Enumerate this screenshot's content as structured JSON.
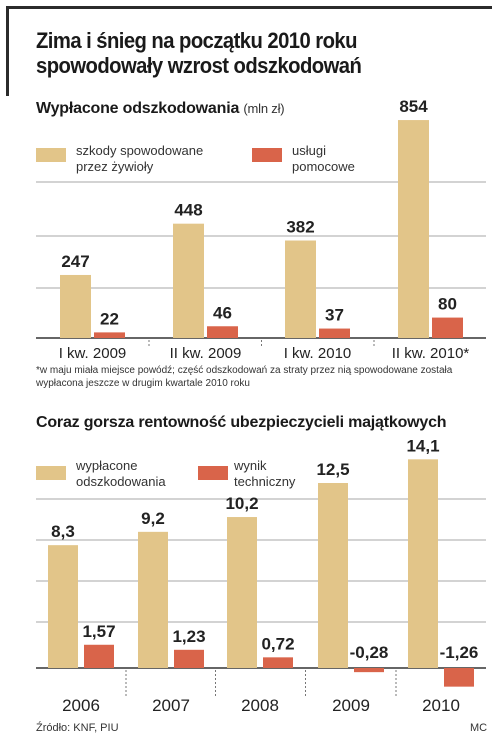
{
  "headline": "Zima i śnieg na początku 2010 roku spowodowały wzrost odszkodowań",
  "colors": {
    "series1": "#e2c589",
    "series2": "#d9644a",
    "grid": "#a7a7a7"
  },
  "chart_data": [
    {
      "type": "bar",
      "title": "Wypłacone odszkodowania",
      "unit": "(mln zł)",
      "categories": [
        "I kw. 2009",
        "II kw. 2009",
        "I kw. 2010",
        "II kw. 2010*"
      ],
      "series": [
        {
          "name": "szkody spowodowane\nprzez żywioły",
          "values": [
            247,
            448,
            382,
            854
          ],
          "labels": [
            "247",
            "448",
            "382",
            "854"
          ]
        },
        {
          "name": "usługi\npomocowe",
          "values": [
            22,
            46,
            37,
            80
          ],
          "labels": [
            "22",
            "46",
            "37",
            "80"
          ]
        }
      ],
      "ylim": [
        0,
        870
      ],
      "grid": true,
      "footnote": "*w maju miała miejsce powódź; część odszkodowań za straty przez nią spowodowane została wypłacona jeszcze w drugim kwartale 2010 roku"
    },
    {
      "type": "bar",
      "title": "Coraz gorsza rentowność ubezpieczycieli majątkowych",
      "categories": [
        "2006",
        "2007",
        "2008",
        "2009",
        "2010"
      ],
      "series": [
        {
          "name": "wypłacone\nodszkodowania",
          "values": [
            8.3,
            9.2,
            10.2,
            12.5,
            14.1
          ],
          "labels": [
            "8,3",
            "9,2",
            "10,2",
            "12,5",
            "14,1"
          ]
        },
        {
          "name": "wynik\ntechniczny",
          "values": [
            1.57,
            1.23,
            0.72,
            -0.28,
            -1.26
          ],
          "labels": [
            "1,57",
            "1,23",
            "0,72",
            "-0,28",
            "-1,26"
          ]
        }
      ],
      "ylim": [
        -1.5,
        15
      ],
      "grid": true
    }
  ],
  "source": "Źródło: KNF, PIU",
  "credit": "MC"
}
